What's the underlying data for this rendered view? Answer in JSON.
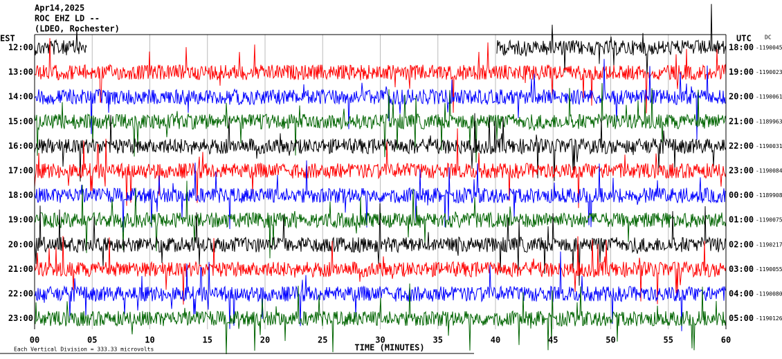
{
  "chart_data": {
    "type": "helicorder",
    "title": "Apr14,2025",
    "subtitle": "ROC EHZ LD --",
    "source": "(LDEO, Rochester)",
    "left_axis_label": "EST",
    "right_axis_label": "UTC",
    "dc_label": "DC",
    "xlabel": "TIME (MINUTES)",
    "scale_note": "Each Vertical Division = 333.33 microvolts",
    "xlim": [
      0,
      60
    ],
    "xticks": [
      {
        "value": 0,
        "label": "00"
      },
      {
        "value": 5,
        "label": "05"
      },
      10,
      15,
      20,
      25,
      30,
      35,
      40,
      45,
      50,
      55,
      60
    ],
    "grid": true,
    "rows": [
      {
        "local": "12:00",
        "utc": "18:00",
        "dc": "-1190045",
        "color": "#000000"
      },
      {
        "local": "13:00",
        "utc": "19:00",
        "dc": "-1190023",
        "color": "#ff0000"
      },
      {
        "local": "14:00",
        "utc": "20:00",
        "dc": "-1190061",
        "color": "#0000ff"
      },
      {
        "local": "15:00",
        "utc": "21:00",
        "dc": "-1189963",
        "color": "#006400"
      },
      {
        "local": "16:00",
        "utc": "22:00",
        "dc": "-1190031",
        "color": "#000000"
      },
      {
        "local": "17:00",
        "utc": "23:00",
        "dc": "-1190084",
        "color": "#ff0000"
      },
      {
        "local": "18:00",
        "utc": "00:00",
        "dc": "-1189908",
        "color": "#0000ff"
      },
      {
        "local": "19:00",
        "utc": "01:00",
        "dc": "-1190075",
        "color": "#006400"
      },
      {
        "local": "20:00",
        "utc": "02:00",
        "dc": "-1190217",
        "color": "#000000"
      },
      {
        "local": "21:00",
        "utc": "03:00",
        "dc": "-1190055",
        "color": "#ff0000"
      },
      {
        "local": "22:00",
        "utc": "04:00",
        "dc": "-1190080",
        "color": "#0000ff"
      },
      {
        "local": "23:00",
        "utc": "05:00",
        "dc": "-1190126",
        "color": "#006400"
      }
    ]
  }
}
